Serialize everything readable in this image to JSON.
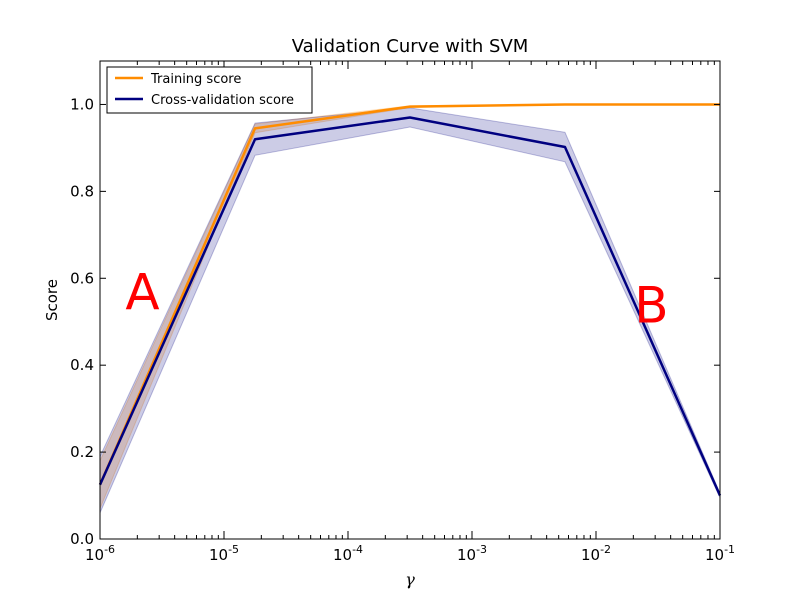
{
  "chart_data": {
    "type": "line",
    "title": "Validation Curve with SVM",
    "xlabel": "γ",
    "ylabel": "Score",
    "xscale": "log",
    "xlim": [
      1e-06,
      0.1
    ],
    "ylim": [
      0.0,
      1.1
    ],
    "grid": false,
    "legend_position": "top-left",
    "x": [
      1e-06,
      1.78e-05,
      0.000316,
      0.00562,
      0.1
    ],
    "x_tick_labels": [
      {
        "base": "10",
        "exp": "-6"
      },
      {
        "base": "10",
        "exp": "-5"
      },
      {
        "base": "10",
        "exp": "-4"
      },
      {
        "base": "10",
        "exp": "-3"
      },
      {
        "base": "10",
        "exp": "-2"
      },
      {
        "base": "10",
        "exp": "-1"
      }
    ],
    "y_ticks": [
      0.0,
      0.2,
      0.4,
      0.6,
      0.8,
      1.0
    ],
    "y_tick_labels": [
      "0.0",
      "0.2",
      "0.4",
      "0.6",
      "0.8",
      "1.0"
    ],
    "series": [
      {
        "name": "Training score",
        "color": "#ff8c00",
        "band_color": "#ff8c00",
        "values": [
          0.125,
          0.945,
          0.995,
          1.0,
          1.0
        ],
        "lower": [
          0.07,
          0.935,
          0.993,
          1.0,
          1.0
        ],
        "upper": [
          0.18,
          0.955,
          0.997,
          1.0,
          1.0
        ]
      },
      {
        "name": "Cross-validation score",
        "color": "#000080",
        "band_color": "#000080",
        "values": [
          0.125,
          0.92,
          0.97,
          0.902,
          0.1
        ],
        "lower": [
          0.06,
          0.883,
          0.948,
          0.868,
          0.095
        ],
        "upper": [
          0.19,
          0.957,
          0.992,
          0.936,
          0.105
        ]
      }
    ],
    "annotations": [
      {
        "text": "A",
        "x": 2.2e-06,
        "y": 0.57,
        "color": "#ff0000"
      },
      {
        "text": "B",
        "x": 0.028,
        "y": 0.54,
        "color": "#ff0000"
      }
    ]
  }
}
